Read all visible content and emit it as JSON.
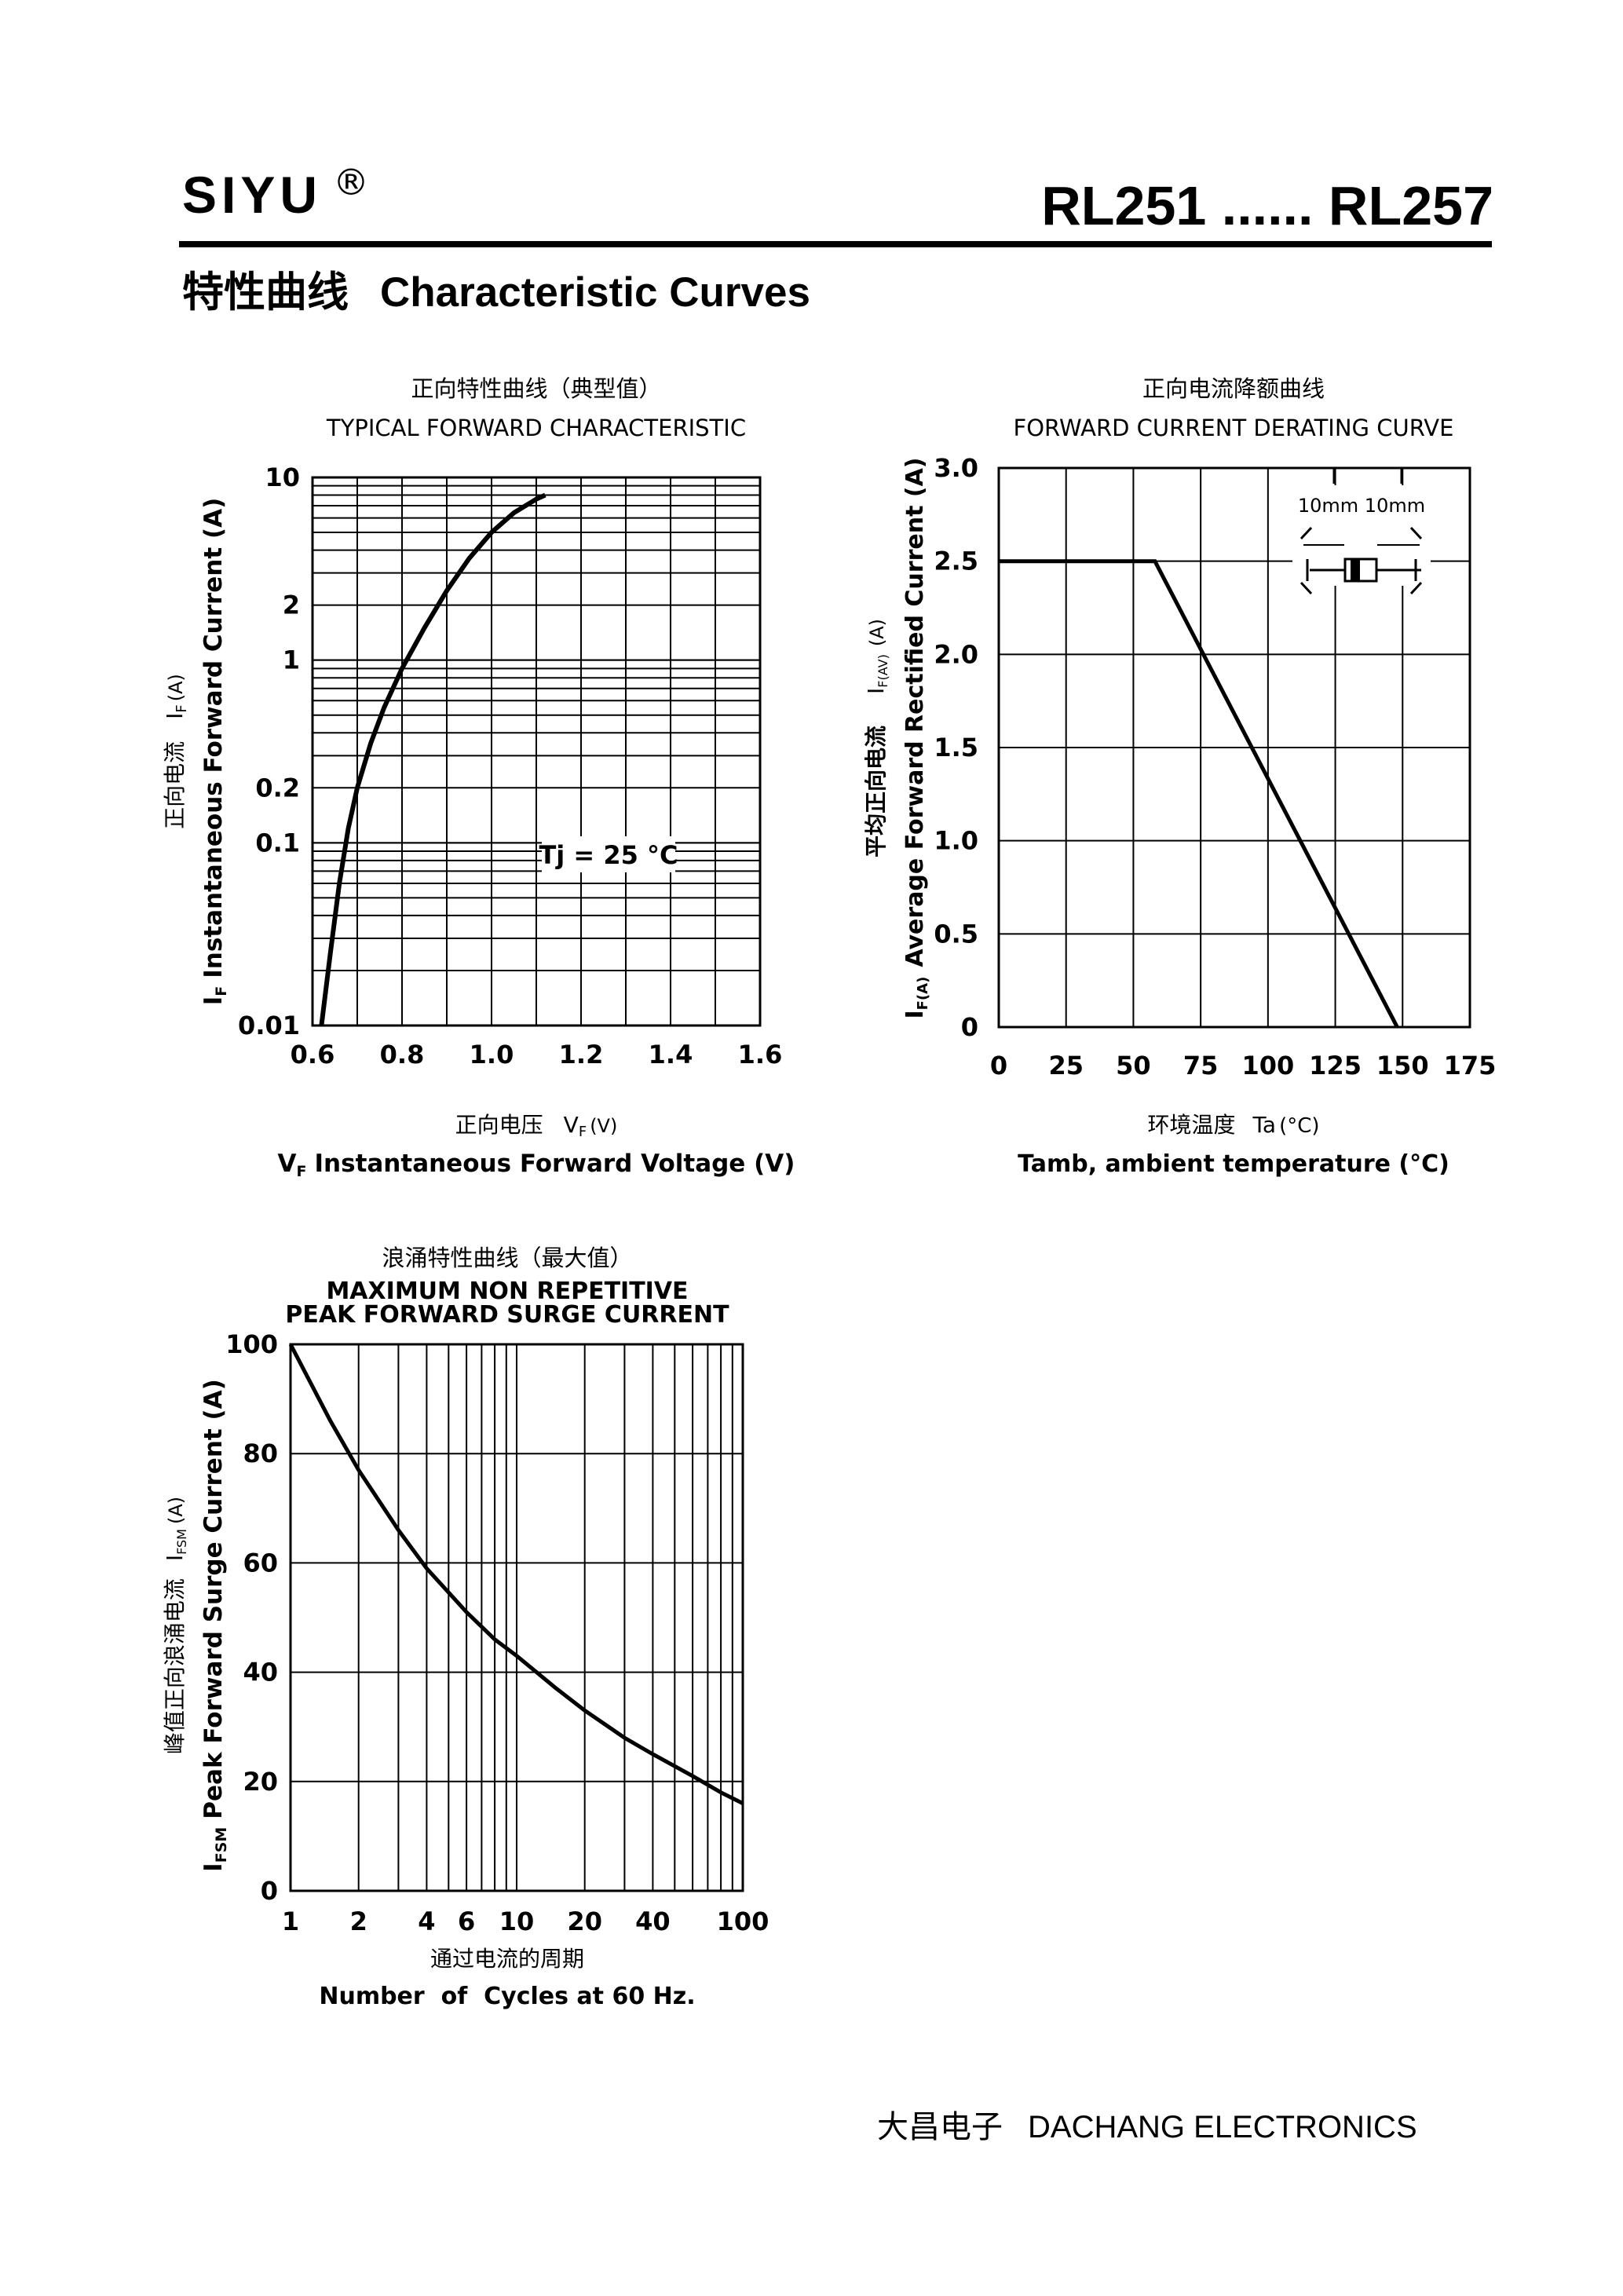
{
  "header": {
    "brand": "SIYU",
    "registered_mark": "®",
    "model_range": "RL251 ...... RL257"
  },
  "section": {
    "title_cn": "特性曲线",
    "title_en": "Characteristic Curves"
  },
  "footer": {
    "company_cn": "大昌电子",
    "company_en": "DACHANG ELECTRONICS"
  },
  "chart_data": [
    {
      "type": "line",
      "title_cn": "正向特性曲线（典型值）",
      "title": "TYPICAL FORWARD CHARACTERISTIC",
      "xlabel_cn": "正向电压",
      "xlabel_sym": "V",
      "xlabel_sub": "F",
      "xlabel_unit": "(V)",
      "xlabel": "Instantaneous Forward Voltage (V)",
      "ylabel_cn": "正向电流",
      "ylabel_sym": "I",
      "ylabel_sub": "F",
      "ylabel_unit": "(A)",
      "ylabel": "Instantaneous Forward Current (A)",
      "y_scale": "log",
      "xlim": [
        0.6,
        1.6
      ],
      "ylim": [
        0.01,
        10
      ],
      "x_ticks": [
        "0.6",
        "0.8",
        "1.0",
        "1.2",
        "1.4",
        "1.6"
      ],
      "y_ticks": [
        {
          "value": 10,
          "label": "10"
        },
        {
          "value": 2,
          "label": "2"
        },
        {
          "value": 1,
          "label": "1"
        },
        {
          "value": 0.2,
          "label": "0.2"
        },
        {
          "value": 0.1,
          "label": "0.1"
        },
        {
          "value": 0.01,
          "label": "0.01"
        }
      ],
      "annotation": "Tj = 25 °C",
      "grid": true,
      "series": [
        {
          "x": [
            0.62,
            0.64,
            0.66,
            0.68,
            0.7,
            0.73,
            0.76,
            0.8,
            0.85,
            0.9,
            0.95,
            1.0,
            1.05,
            1.1,
            1.12
          ],
          "y": [
            0.01,
            0.025,
            0.06,
            0.12,
            0.2,
            0.35,
            0.55,
            0.9,
            1.5,
            2.4,
            3.6,
            5.0,
            6.4,
            7.6,
            8.0
          ]
        }
      ]
    },
    {
      "type": "line",
      "title_cn": "正向电流降额曲线",
      "title": "FORWARD CURRENT DERATING CURVE",
      "xlabel_cn": "环境温度",
      "xlabel_sym": "Ta",
      "xlabel_unit": "(°C)",
      "xlabel": "Tamb, ambient temperature (°C)",
      "ylabel_cn": "平均正向电流",
      "ylabel_sym": "I",
      "ylabel_sub": "F(AV)",
      "ylabel_unit": "(A)",
      "ylabel": "Average Forward Rectified Current (A)",
      "ylabel_prefix": "I",
      "ylabel_prefix_sub": "F(A)",
      "xlim": [
        0,
        175
      ],
      "ylim": [
        0,
        3.0
      ],
      "x_ticks": [
        "0",
        "25",
        "50",
        "75",
        "100",
        "125",
        "150",
        "175"
      ],
      "y_ticks": [
        "0",
        "0.5",
        "1.0",
        "1.5",
        "2.0",
        "2.5",
        "3.0"
      ],
      "grid": true,
      "inset_label": "10mm  10mm",
      "series": [
        {
          "x": [
            0,
            58,
            148
          ],
          "y": [
            2.5,
            2.5,
            0
          ]
        }
      ]
    },
    {
      "type": "line",
      "title_cn": "浪涌特性曲线（最大值）",
      "title": "MAXIMUM NON REPETITIVE",
      "subtitle": "PEAK FORWARD SURGE CURRENT",
      "xlabel_cn": "通过电流的周期",
      "xlabel": "Number  of  Cycles at 60 Hz.",
      "ylabel_cn": "峰值正向浪涌电流",
      "ylabel_sym": "I",
      "ylabel_sub": "FSM",
      "ylabel_unit": "(A)",
      "ylabel": "Peak Forward Surge Current (A)",
      "x_scale": "log",
      "xlim": [
        1,
        100
      ],
      "ylim": [
        0,
        100
      ],
      "x_ticks": [
        {
          "value": 1,
          "label": "1"
        },
        {
          "value": 2,
          "label": "2"
        },
        {
          "value": 4,
          "label": "4"
        },
        {
          "value": 6,
          "label": "6"
        },
        {
          "value": 10,
          "label": "10"
        },
        {
          "value": 20,
          "label": "20"
        },
        {
          "value": 40,
          "label": "40"
        },
        {
          "value": 100,
          "label": "100"
        }
      ],
      "y_ticks": [
        "0",
        "20",
        "40",
        "60",
        "80",
        "100"
      ],
      "grid": true,
      "series": [
        {
          "x": [
            1,
            1.5,
            2,
            3,
            4,
            6,
            8,
            10,
            15,
            20,
            30,
            40,
            60,
            80,
            100
          ],
          "y": [
            100,
            86,
            77,
            66,
            59,
            51,
            46,
            43,
            37,
            33,
            28,
            25,
            21,
            18,
            16
          ]
        }
      ]
    }
  ]
}
